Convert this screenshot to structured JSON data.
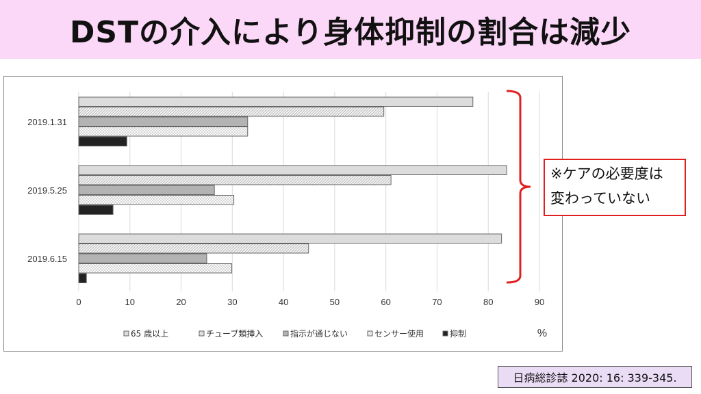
{
  "title": "DSTの介入により身体抑制の割合は減少",
  "callout": {
    "line1": "※ケアの必要度は",
    "line2": "変わっていない"
  },
  "citation": "日病総診誌 2020: 16: 339-345.",
  "colors": {
    "title_bg": "#fbd7f8",
    "bracket": "#e02020"
  },
  "chart_data": {
    "type": "bar",
    "orientation": "horizontal",
    "categories": [
      "2019.1.31",
      "2019.5.25",
      "2019.6.15"
    ],
    "series": [
      {
        "name": "65 歳以上",
        "values": [
          77,
          83.6,
          82.6
        ]
      },
      {
        "name": "チューブ類挿入",
        "values": [
          59.6,
          61,
          44.9
        ]
      },
      {
        "name": "指示が通じない",
        "values": [
          33,
          26.5,
          25
        ]
      },
      {
        "name": "センサー使用",
        "values": [
          33,
          30.3,
          29.9
        ]
      },
      {
        "name": "抑制",
        "values": [
          9.4,
          6.7,
          1.5
        ]
      }
    ],
    "xlim": [
      0,
      90
    ],
    "xticks": [
      "0",
      "10",
      "20",
      "30",
      "40",
      "50",
      "60",
      "70",
      "80",
      "90"
    ],
    "xlabel": "%",
    "grid": true,
    "legend": "bottom"
  }
}
